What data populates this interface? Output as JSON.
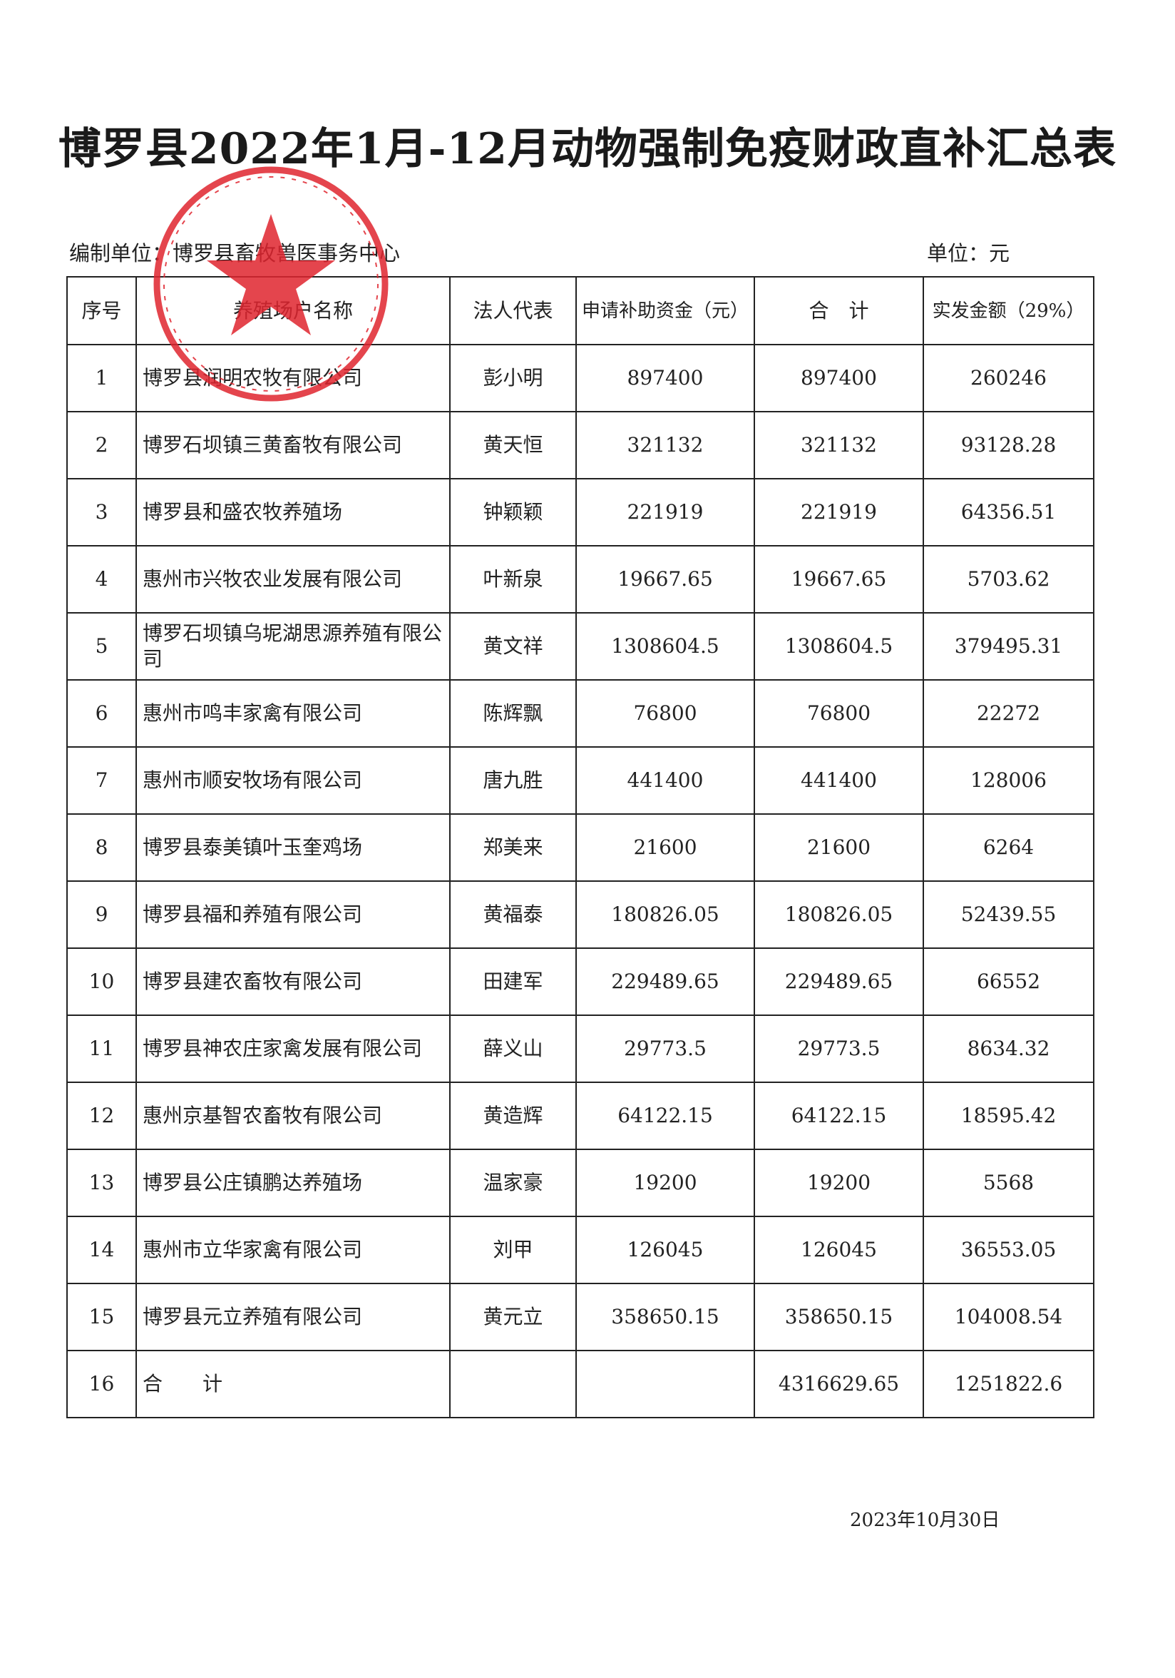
{
  "title": "博罗县2022年1月-12月动物强制免疫财政直补汇总表",
  "compiler": "编制单位：博罗县畜牧兽医事务中心",
  "unit": "单位：元",
  "stamp": {
    "text": "博罗县畜牧兽医事务中心",
    "color": "#e0252f"
  },
  "table": {
    "headers": [
      "序号",
      "养殖场户名称",
      "法人代表",
      "申请补助资金（元）",
      "合　计",
      "实发金额（29%）"
    ],
    "rows": [
      [
        "1",
        "博罗县润明农牧有限公司",
        "彭小明",
        "897400",
        "897400",
        "260246"
      ],
      [
        "2",
        "博罗石坝镇三黄畜牧有限公司",
        "黄天恒",
        "321132",
        "321132",
        "93128.28"
      ],
      [
        "3",
        "博罗县和盛农牧养殖场",
        "钟颖颖",
        "221919",
        "221919",
        "64356.51"
      ],
      [
        "4",
        "惠州市兴牧农业发展有限公司",
        "叶新泉",
        "19667.65",
        "19667.65",
        "5703.62"
      ],
      [
        "5",
        "博罗石坝镇乌坭湖思源养殖有限公司",
        "黄文祥",
        "1308604.5",
        "1308604.5",
        "379495.31"
      ],
      [
        "6",
        "惠州市鸣丰家禽有限公司",
        "陈辉飘",
        "76800",
        "76800",
        "22272"
      ],
      [
        "7",
        "惠州市顺安牧场有限公司",
        "唐九胜",
        "441400",
        "441400",
        "128006"
      ],
      [
        "8",
        "博罗县泰美镇叶玉奎鸡场",
        "郑美来",
        "21600",
        "21600",
        "6264"
      ],
      [
        "9",
        "博罗县福和养殖有限公司",
        "黄福泰",
        "180826.05",
        "180826.05",
        "52439.55"
      ],
      [
        "10",
        "博罗县建农畜牧有限公司",
        "田建军",
        "229489.65",
        "229489.65",
        "66552"
      ],
      [
        "11",
        "博罗县神农庄家禽发展有限公司",
        "薛义山",
        "29773.5",
        "29773.5",
        "8634.32"
      ],
      [
        "12",
        "惠州京基智农畜牧有限公司",
        "黄造辉",
        "64122.15",
        "64122.15",
        "18595.42"
      ],
      [
        "13",
        "博罗县公庄镇鹏达养殖场",
        "温家豪",
        "19200",
        "19200",
        "5568"
      ],
      [
        "14",
        "惠州市立华家禽有限公司",
        "刘甲",
        "126045",
        "126045",
        "36553.05"
      ],
      [
        "15",
        "博罗县元立养殖有限公司",
        "黄元立",
        "358650.15",
        "358650.15",
        "104008.54"
      ],
      [
        "16",
        "合　　计",
        "",
        "",
        "4316629.65",
        "1251822.6"
      ]
    ]
  },
  "date": "2023年10月30日"
}
